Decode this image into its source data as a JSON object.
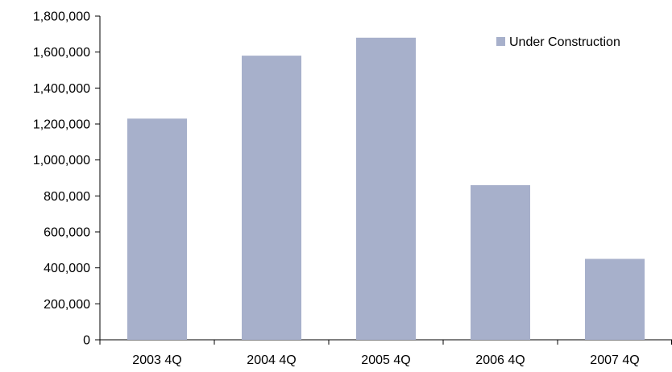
{
  "chart_data": {
    "type": "bar",
    "categories": [
      "2003 4Q",
      "2004 4Q",
      "2005 4Q",
      "2006 4Q",
      "2007 4Q"
    ],
    "series": [
      {
        "name": "Under Construction",
        "values": [
          1230000,
          1580000,
          1680000,
          860000,
          450000
        ],
        "color": "#a7b0cb"
      }
    ],
    "ylim": [
      0,
      1800000
    ],
    "yticks": [
      0,
      200000,
      400000,
      600000,
      800000,
      1000000,
      1200000,
      1400000,
      1600000,
      1800000
    ],
    "grid": false,
    "legend_position": "top-right",
    "title": "",
    "xlabel": "",
    "ylabel": ""
  }
}
